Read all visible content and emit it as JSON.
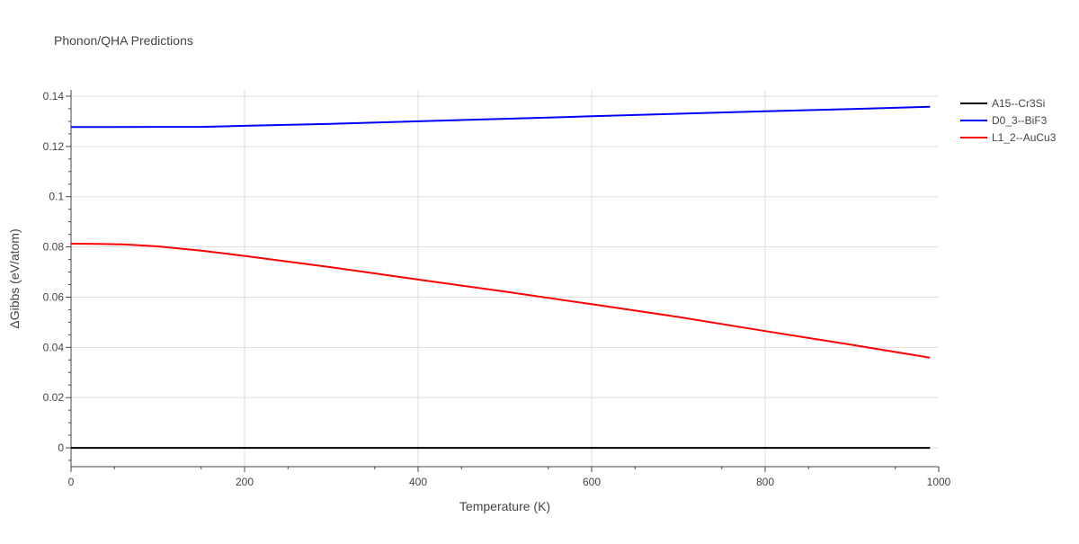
{
  "chart_data": {
    "type": "line",
    "title": "Phonon/QHA Predictions",
    "xlabel": "Temperature (K)",
    "ylabel": "ΔGibbs (eV/atom)",
    "xlim": [
      0,
      1000
    ],
    "ylim": [
      -0.0075,
      0.1425
    ],
    "x_ticks": [
      0,
      200,
      400,
      600,
      800,
      1000
    ],
    "x_tick_labels": [
      "0",
      "200",
      "400",
      "600",
      "800",
      "1000"
    ],
    "y_ticks": [
      0,
      0.02,
      0.04,
      0.06,
      0.08,
      0.1,
      0.12,
      0.14
    ],
    "y_tick_labels": [
      "0",
      "0.02",
      "0.04",
      "0.06",
      "0.08",
      "0.1",
      "0.12",
      "0.14"
    ],
    "grid": true,
    "legend_position": "top-right",
    "series": [
      {
        "name": "A15--Cr3Si",
        "color": "#000000",
        "x": [
          0,
          100,
          200,
          300,
          400,
          500,
          600,
          700,
          800,
          900,
          990
        ],
        "y": [
          0,
          0,
          0,
          0,
          0,
          0,
          0,
          0,
          0,
          0,
          0
        ]
      },
      {
        "name": "D0_3--BiF3",
        "color": "#0000ff",
        "x": [
          0,
          50,
          100,
          150,
          200,
          300,
          400,
          500,
          600,
          700,
          800,
          900,
          990
        ],
        "y": [
          0.1277,
          0.1277,
          0.1278,
          0.1278,
          0.1282,
          0.129,
          0.13,
          0.131,
          0.132,
          0.133,
          0.134,
          0.1349,
          0.1358
        ]
      },
      {
        "name": "L1_2--AuCu3",
        "color": "#ff0000",
        "x": [
          0,
          30,
          60,
          100,
          150,
          200,
          300,
          400,
          500,
          600,
          700,
          800,
          900,
          990
        ],
        "y": [
          0.0813,
          0.0812,
          0.081,
          0.0802,
          0.0785,
          0.0764,
          0.0719,
          0.067,
          0.0622,
          0.0572,
          0.0521,
          0.0465,
          0.041,
          0.0359
        ]
      }
    ]
  }
}
